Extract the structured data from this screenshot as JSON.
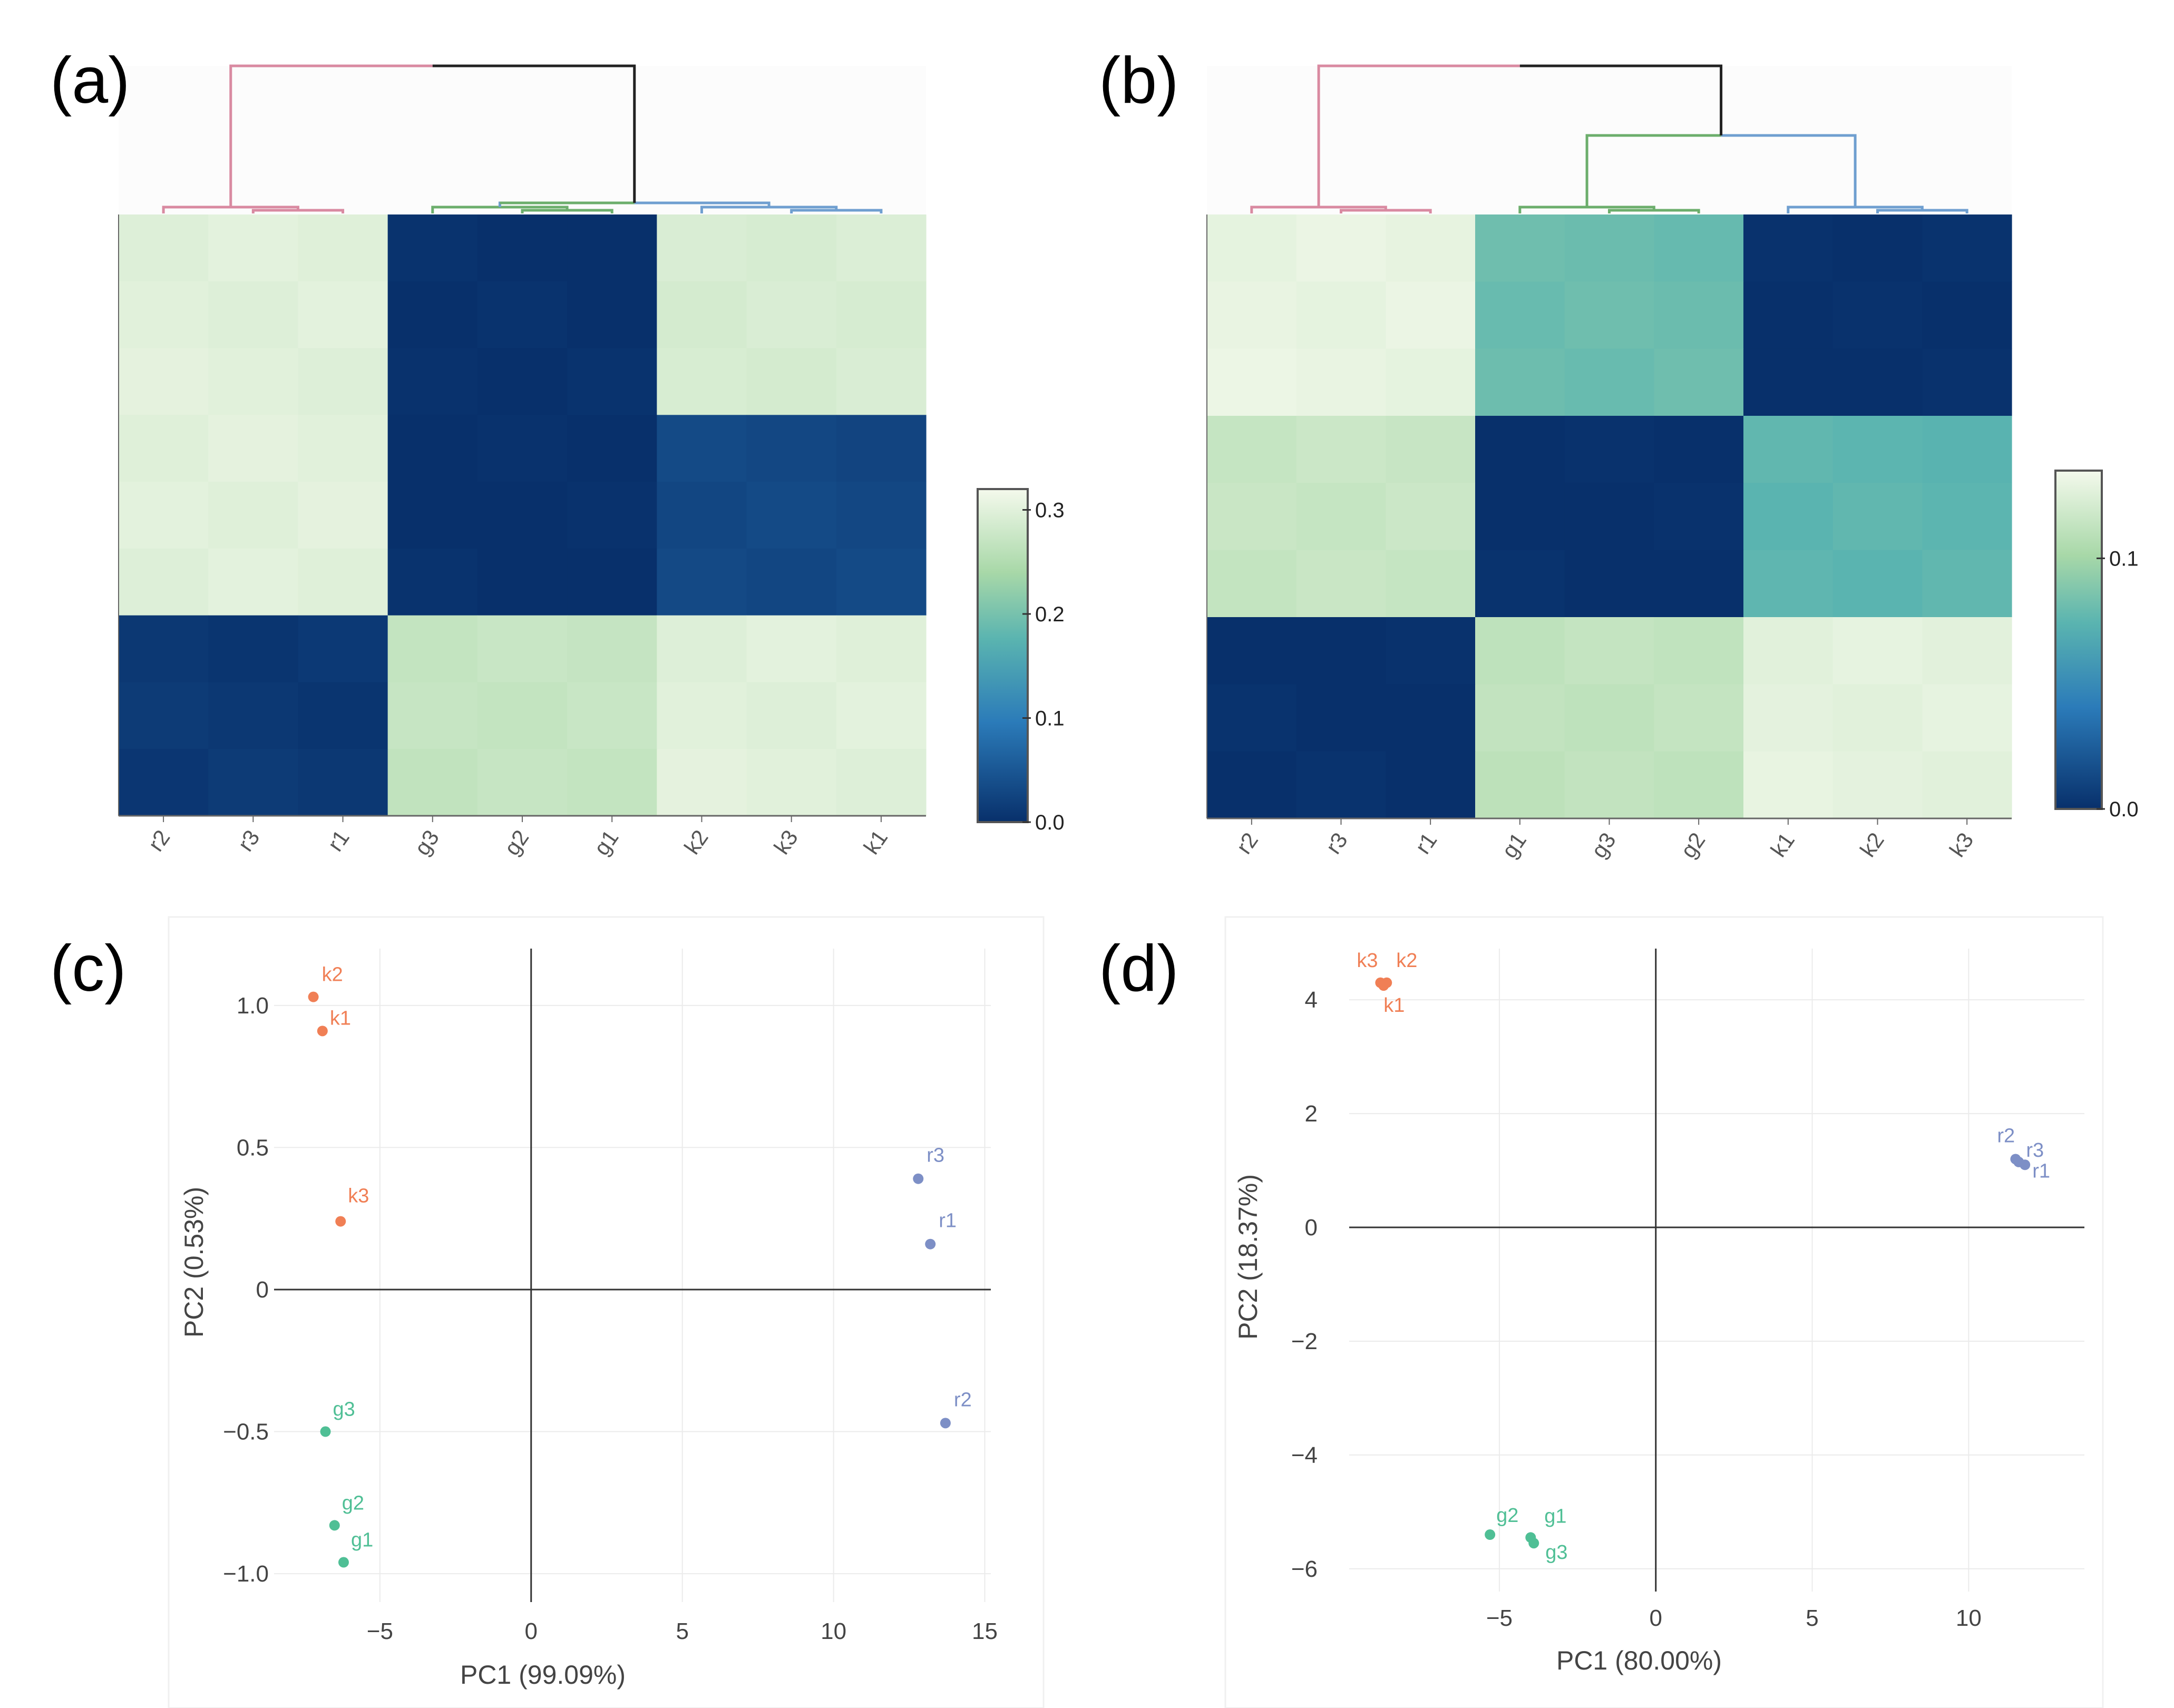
{
  "chart_data": [
    {
      "panel": "(a)",
      "type": "heatmap",
      "rows": [
        "r2",
        "r3",
        "r1",
        "g3",
        "g2",
        "g1",
        "k2",
        "k3",
        "k1"
      ],
      "columns": [
        "r2",
        "r3",
        "r1",
        "g3",
        "g2",
        "g1",
        "k2",
        "k3",
        "k1"
      ],
      "row_groups": [
        {
          "name": "r",
          "rows": 3,
          "values": [
            0.3,
            0.0,
            0.29
          ]
        },
        {
          "name": "g",
          "rows": 3,
          "values": [
            0.3,
            0.0,
            0.03
          ]
        },
        {
          "name": "k",
          "rows": 3,
          "values": [
            0.01,
            0.27,
            0.3
          ]
        }
      ],
      "colorbar": {
        "ticks": [
          "0.0",
          "0.1",
          "0.2",
          "0.3"
        ],
        "range": [
          0,
          0.32
        ]
      },
      "dendrogram": {
        "group_colors": {
          "r": "#d98aa1",
          "g": "#6cae6c",
          "k": "#6f9fd0",
          "root": "#222222"
        }
      }
    },
    {
      "panel": "(b)",
      "type": "heatmap",
      "rows": [
        "r2",
        "r3",
        "r1",
        "g1",
        "g3",
        "g2",
        "k1",
        "k2",
        "k3"
      ],
      "columns": [
        "r2",
        "r3",
        "r1",
        "g1",
        "g3",
        "g2",
        "k1",
        "k2",
        "k3"
      ],
      "row_groups": [
        {
          "name": "r",
          "rows": 3,
          "values": [
            0.13,
            0.08,
            0.0
          ]
        },
        {
          "name": "g",
          "rows": 3,
          "values": [
            0.115,
            0.0,
            0.075
          ]
        },
        {
          "name": "k",
          "rows": 3,
          "values": [
            0.0,
            0.112,
            0.128
          ]
        }
      ],
      "colorbar": {
        "ticks": [
          "0.0",
          "0.1"
        ],
        "range": [
          0,
          0.135
        ]
      },
      "dendrogram": {
        "group_colors": {
          "r": "#d98aa1",
          "g": "#6cae6c",
          "k": "#6f9fd0",
          "root": "#222222"
        }
      }
    },
    {
      "panel": "(c)",
      "type": "scatter",
      "xlabel": "PC1 (99.09%)",
      "ylabel": "PC2 (0.53%)",
      "xlim": [
        -8.5,
        15.2
      ],
      "ylim": [
        -1.1,
        1.2
      ],
      "xticks": [
        -5,
        0,
        5,
        10,
        15
      ],
      "xtick_labels": [
        "−5",
        "0",
        "5",
        "10",
        "15"
      ],
      "yticks": [
        -1.0,
        -0.5,
        0,
        0.5,
        1.0
      ],
      "ytick_labels": [
        "−1.0",
        "−0.5",
        "0",
        "0.5",
        "1.0"
      ],
      "series": [
        {
          "name": "k",
          "color": "#f07f55",
          "points": [
            {
              "label": "k2",
              "x": -7.2,
              "y": 1.03
            },
            {
              "label": "k1",
              "x": -6.9,
              "y": 0.91
            },
            {
              "label": "k3",
              "x": -6.3,
              "y": 0.24
            }
          ]
        },
        {
          "name": "g",
          "color": "#4fbf95",
          "points": [
            {
              "label": "g3",
              "x": -6.8,
              "y": -0.5
            },
            {
              "label": "g2",
              "x": -6.5,
              "y": -0.83
            },
            {
              "label": "g1",
              "x": -6.2,
              "y": -0.96
            }
          ]
        },
        {
          "name": "r",
          "color": "#7d8fc6",
          "points": [
            {
              "label": "r3",
              "x": 12.8,
              "y": 0.39
            },
            {
              "label": "r1",
              "x": 13.2,
              "y": 0.16
            },
            {
              "label": "r2",
              "x": 13.7,
              "y": -0.47
            }
          ]
        }
      ]
    },
    {
      "panel": "(d)",
      "type": "scatter",
      "xlabel": "PC1 (80.00%)",
      "ylabel": "PC2 (18.37%)",
      "xlim": [
        -9.8,
        13.7
      ],
      "ylim": [
        -6.4,
        4.9
      ],
      "xticks": [
        -5,
        0,
        5,
        10
      ],
      "xtick_labels": [
        "−5",
        "0",
        "5",
        "10"
      ],
      "yticks": [
        -6,
        -4,
        -2,
        0,
        2,
        4
      ],
      "ytick_labels": [
        "−6",
        "−4",
        "−2",
        "0",
        "2",
        "4"
      ],
      "series": [
        {
          "name": "k",
          "color": "#f07f55",
          "points": [
            {
              "label": "k3",
              "x": -8.8,
              "y": 4.3
            },
            {
              "label": "k2",
              "x": -8.6,
              "y": 4.3
            },
            {
              "label": "k1",
              "x": -8.7,
              "y": 4.25
            }
          ]
        },
        {
          "name": "r",
          "color": "#7d8fc6",
          "points": [
            {
              "label": "r2",
              "x": 11.5,
              "y": 1.2
            },
            {
              "label": "r3",
              "x": 11.6,
              "y": 1.15
            },
            {
              "label": "r1",
              "x": 11.8,
              "y": 1.1
            }
          ]
        },
        {
          "name": "g",
          "color": "#4fbf95",
          "points": [
            {
              "label": "g2",
              "x": -5.3,
              "y": -5.4
            },
            {
              "label": "g1",
              "x": -4.0,
              "y": -5.45
            },
            {
              "label": "g3",
              "x": -3.9,
              "y": -5.55
            }
          ]
        }
      ]
    }
  ]
}
